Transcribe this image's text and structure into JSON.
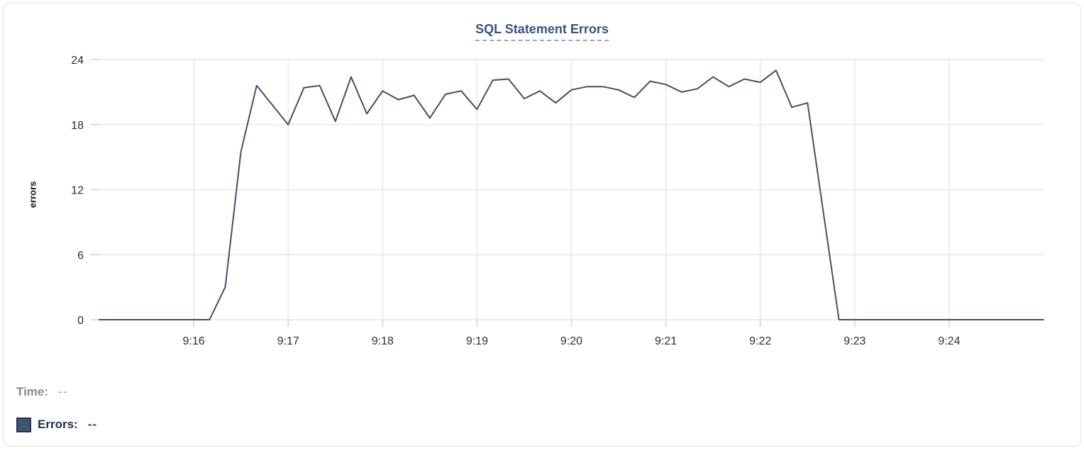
{
  "chart_data": {
    "type": "line",
    "title": "SQL Statement Errors",
    "xlabel": "",
    "ylabel": "errors",
    "x_start": "9:15:00",
    "x_end": "9:25:00",
    "sample_interval_seconds": 10,
    "x_tick_labels": [
      "9:16",
      "9:17",
      "9:18",
      "9:19",
      "9:20",
      "9:21",
      "9:22",
      "9:23",
      "9:24"
    ],
    "yticks": [
      0,
      6,
      12,
      18,
      24
    ],
    "ylim": [
      0,
      24
    ],
    "grid": true,
    "legend_position": "bottom-left",
    "series": [
      {
        "name": "Errors",
        "color": "#42506b",
        "values": [
          0,
          0,
          0,
          0,
          0,
          0,
          0,
          0,
          3,
          15.5,
          21.6,
          19.8,
          18,
          21.4,
          21.6,
          18.3,
          22.4,
          19,
          21.1,
          20.3,
          20.7,
          18.6,
          20.8,
          21.1,
          19.4,
          22.1,
          22.2,
          20.4,
          21.1,
          20,
          21.2,
          21.5,
          21.5,
          21.2,
          20.5,
          22,
          21.7,
          21,
          21.3,
          22.4,
          21.5,
          22.2,
          21.9,
          23,
          19.6,
          20,
          10,
          0,
          0,
          0,
          0,
          0,
          0,
          0,
          0,
          0,
          0,
          0,
          0,
          0,
          0
        ]
      }
    ]
  },
  "legend": {
    "time_label": "Time:",
    "time_value": "--",
    "errors_label": "Errors:",
    "errors_value": "--",
    "swatch_color": "#41536f"
  },
  "colors": {
    "title": "#3a5180",
    "title_underline": "#93a5c6",
    "line": "#42506b",
    "grid": "#ececec",
    "tick": "#dcdcdc",
    "tick_text": "#2e2e2e",
    "card_border": "#e4e4e6"
  }
}
